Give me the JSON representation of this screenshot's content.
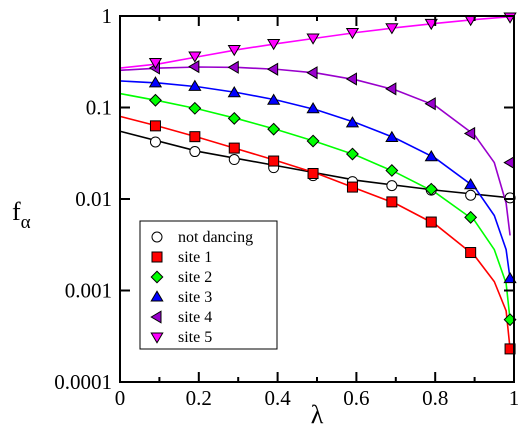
{
  "chart_data": {
    "type": "line",
    "xlabel": "λ",
    "ylabel_main": "f",
    "ylabel_sub": "α",
    "xlim": [
      0,
      1
    ],
    "ylim": [
      0.0001,
      1
    ],
    "yscale": "log",
    "grid": false,
    "legend_position": "bottom-left",
    "x_ticks": [
      {
        "value": 0,
        "label": "0"
      },
      {
        "value": 0.2,
        "label": "0.2"
      },
      {
        "value": 0.4,
        "label": "0.4"
      },
      {
        "value": 0.6,
        "label": "0.6"
      },
      {
        "value": 0.8,
        "label": "0.8"
      },
      {
        "value": 1,
        "label": "1"
      }
    ],
    "y_ticks": [
      {
        "value": 1,
        "label": "1"
      },
      {
        "value": 0.1,
        "label": "0.1"
      },
      {
        "value": 0.01,
        "label": "0.01"
      },
      {
        "value": 0.001,
        "label": "0.001"
      },
      {
        "value": 0.0001,
        "label": "0.0001"
      }
    ],
    "series": [
      {
        "name": "not dancing",
        "marker": "circle",
        "color": "#000000",
        "fill": "#ffffff",
        "x": [
          0.09,
          0.19,
          0.29,
          0.39,
          0.49,
          0.59,
          0.69,
          0.79,
          0.89,
          0.99
        ],
        "y": [
          0.042,
          0.033,
          0.027,
          0.022,
          0.018,
          0.0155,
          0.014,
          0.0125,
          0.011,
          0.0103
        ],
        "curve": [
          [
            0,
            0.055
          ],
          [
            0.2,
            0.033
          ],
          [
            0.4,
            0.023
          ],
          [
            0.6,
            0.016
          ],
          [
            0.8,
            0.0125
          ],
          [
            1.0,
            0.0102
          ]
        ]
      },
      {
        "name": "site 1",
        "marker": "square",
        "color": "#ff0000",
        "fill": "#ff0000",
        "x": [
          0.09,
          0.19,
          0.29,
          0.39,
          0.49,
          0.59,
          0.69,
          0.79,
          0.89,
          0.99
        ],
        "y": [
          0.063,
          0.048,
          0.036,
          0.026,
          0.019,
          0.0135,
          0.0093,
          0.0056,
          0.0026,
          0.00023
        ],
        "curve": [
          [
            0,
            0.08
          ],
          [
            0.1,
            0.062
          ],
          [
            0.2,
            0.047
          ],
          [
            0.3,
            0.035
          ],
          [
            0.4,
            0.026
          ],
          [
            0.5,
            0.019
          ],
          [
            0.6,
            0.013
          ],
          [
            0.7,
            0.0089
          ],
          [
            0.8,
            0.0053
          ],
          [
            0.9,
            0.0024
          ],
          [
            0.95,
            0.00125
          ],
          [
            0.98,
            0.0006
          ],
          [
            0.99,
            0.00023
          ]
        ]
      },
      {
        "name": "site 2",
        "marker": "diamond",
        "color": "#00ff00",
        "fill": "#00ff00",
        "x": [
          0.09,
          0.19,
          0.29,
          0.39,
          0.49,
          0.59,
          0.69,
          0.79,
          0.89,
          0.99
        ],
        "y": [
          0.12,
          0.098,
          0.076,
          0.058,
          0.043,
          0.031,
          0.0205,
          0.0128,
          0.0063,
          0.00048
        ],
        "curve": [
          [
            0,
            0.142
          ],
          [
            0.1,
            0.118
          ],
          [
            0.2,
            0.096
          ],
          [
            0.3,
            0.075
          ],
          [
            0.4,
            0.057
          ],
          [
            0.5,
            0.042
          ],
          [
            0.6,
            0.03
          ],
          [
            0.7,
            0.0195
          ],
          [
            0.8,
            0.0118
          ],
          [
            0.9,
            0.0058
          ],
          [
            0.95,
            0.0028
          ],
          [
            0.98,
            0.0012
          ],
          [
            0.99,
            0.00048
          ]
        ]
      },
      {
        "name": "site 3",
        "marker": "triangle-up",
        "color": "#0000ff",
        "fill": "#0000ff",
        "x": [
          0.09,
          0.19,
          0.29,
          0.39,
          0.49,
          0.59,
          0.69,
          0.79,
          0.89,
          0.99
        ],
        "y": [
          0.186,
          0.17,
          0.145,
          0.12,
          0.097,
          0.068,
          0.047,
          0.029,
          0.0143,
          0.00135
        ],
        "curve": [
          [
            0,
            0.195
          ],
          [
            0.1,
            0.185
          ],
          [
            0.2,
            0.168
          ],
          [
            0.3,
            0.145
          ],
          [
            0.4,
            0.12
          ],
          [
            0.5,
            0.094
          ],
          [
            0.6,
            0.068
          ],
          [
            0.7,
            0.046
          ],
          [
            0.8,
            0.028
          ],
          [
            0.9,
            0.0135
          ],
          [
            0.95,
            0.0066
          ],
          [
            0.98,
            0.0028
          ],
          [
            0.99,
            0.00135
          ]
        ]
      },
      {
        "name": "site 4",
        "marker": "triangle-left",
        "color": "#9900cc",
        "fill": "#9900cc",
        "x": [
          0.09,
          0.19,
          0.29,
          0.39,
          0.49,
          0.59,
          0.69,
          0.79,
          0.89,
          0.99
        ],
        "y": [
          0.27,
          0.28,
          0.275,
          0.262,
          0.24,
          0.205,
          0.16,
          0.11,
          0.052,
          0.025
        ],
        "curve": [
          [
            0,
            0.255
          ],
          [
            0.1,
            0.27
          ],
          [
            0.2,
            0.277
          ],
          [
            0.3,
            0.274
          ],
          [
            0.4,
            0.261
          ],
          [
            0.5,
            0.238
          ],
          [
            0.6,
            0.2
          ],
          [
            0.7,
            0.155
          ],
          [
            0.8,
            0.105
          ],
          [
            0.9,
            0.05
          ],
          [
            0.95,
            0.025
          ],
          [
            0.98,
            0.009
          ],
          [
            0.99,
            0.004
          ]
        ]
      },
      {
        "name": "site 5",
        "marker": "triangle-down",
        "color": "#ff00ff",
        "fill": "#ff00ff",
        "x": [
          0.09,
          0.19,
          0.29,
          0.39,
          0.49,
          0.59,
          0.69,
          0.79,
          0.89,
          0.99
        ],
        "y": [
          0.31,
          0.365,
          0.43,
          0.5,
          0.575,
          0.66,
          0.745,
          0.83,
          0.915,
          0.975
        ],
        "curve": [
          [
            0,
            0.27
          ],
          [
            0.1,
            0.3
          ],
          [
            0.2,
            0.36
          ],
          [
            0.3,
            0.43
          ],
          [
            0.4,
            0.5
          ],
          [
            0.5,
            0.575
          ],
          [
            0.6,
            0.66
          ],
          [
            0.7,
            0.745
          ],
          [
            0.8,
            0.83
          ],
          [
            0.9,
            0.915
          ],
          [
            1.0,
            0.99
          ]
        ]
      }
    ]
  }
}
